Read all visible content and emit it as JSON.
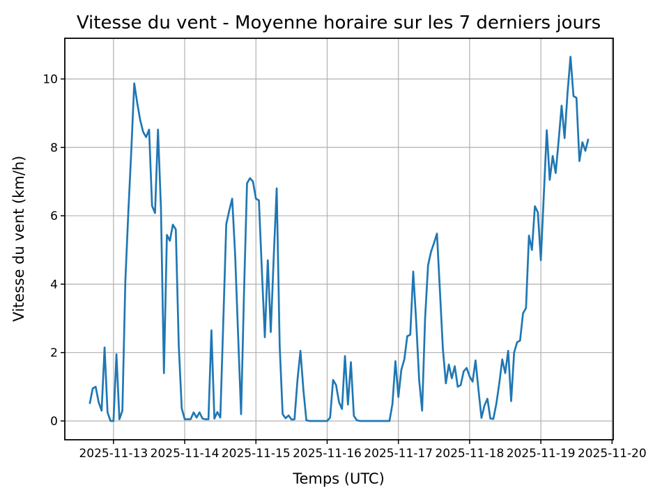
{
  "figure": {
    "background": "#ffffff"
  },
  "chart_data": {
    "type": "line",
    "title": "Vitesse du vent - Moyenne horaire sur les 7 derniers jours",
    "xlabel": "Temps (UTC)",
    "ylabel": "Vitesse du vent (km/h)",
    "line_color": "#1f77b4",
    "grid_color": "#b0b0b0",
    "spine_color": "#000000",
    "grid": true,
    "legend": false,
    "x_tick_hours": [
      0,
      24,
      48,
      72,
      96,
      120,
      144,
      168
    ],
    "x_tick_labels": [
      "2025-11-13",
      "2025-11-14",
      "2025-11-15",
      "2025-11-16",
      "2025-11-17",
      "2025-11-18",
      "2025-11-19",
      "2025-11-20"
    ],
    "y_ticks": [
      0,
      2,
      4,
      6,
      8,
      10
    ],
    "ylim": [
      -0.55,
      11.19
    ],
    "xlim_hours": [
      -16.4,
      168.4
    ],
    "series": [
      {
        "start_utc": "2025-11-12 16:00",
        "step_hours": 1,
        "start_hour_offset": -8,
        "values": [
          0.5,
          0.95,
          1.0,
          0.55,
          0.3,
          2.15,
          0.25,
          0.0,
          0.0,
          1.95,
          0.05,
          0.3,
          4.1,
          6.1,
          7.9,
          9.87,
          9.3,
          8.8,
          8.45,
          8.3,
          8.52,
          6.29,
          6.08,
          8.52,
          6.2,
          1.4,
          5.44,
          5.27,
          5.74,
          5.6,
          2.2,
          0.37,
          0.05,
          0.05,
          0.05,
          0.25,
          0.1,
          0.25,
          0.07,
          0.05,
          0.05,
          2.65,
          0.07,
          0.26,
          0.1,
          2.9,
          5.75,
          6.15,
          6.5,
          4.85,
          2.5,
          0.2,
          3.8,
          6.95,
          7.1,
          7.0,
          6.5,
          6.45,
          4.4,
          2.45,
          4.7,
          2.6,
          4.8,
          6.8,
          2.2,
          0.2,
          0.08,
          0.16,
          0.04,
          0.05,
          1.2,
          2.05,
          0.9,
          0.02,
          0.0,
          0.0,
          0.0,
          0.0,
          0.0,
          0.0,
          0.0,
          0.1,
          1.2,
          1.05,
          0.55,
          0.35,
          1.9,
          0.48,
          1.72,
          0.15,
          0.02,
          0.0,
          0.0,
          0.0,
          0.0,
          0.0,
          0.0,
          0.0,
          0.0,
          0.0,
          0.0,
          0.0,
          0.5,
          1.75,
          0.7,
          1.5,
          1.8,
          2.48,
          2.52,
          4.37,
          2.9,
          1.2,
          0.3,
          3.0,
          4.55,
          4.95,
          5.2,
          5.48,
          3.8,
          2.1,
          1.1,
          1.65,
          1.25,
          1.6,
          1.0,
          1.05,
          1.45,
          1.55,
          1.3,
          1.15,
          1.77,
          0.9,
          0.09,
          0.45,
          0.65,
          0.07,
          0.06,
          0.5,
          1.1,
          1.8,
          1.4,
          2.05,
          0.58,
          2.0,
          2.3,
          2.35,
          3.15,
          3.3,
          5.42,
          5.0,
          6.28,
          6.1,
          4.7,
          6.6,
          8.5,
          7.05,
          7.75,
          7.25,
          8.2,
          9.22,
          8.27,
          9.6,
          10.65,
          9.5,
          9.45,
          7.6,
          8.15,
          7.9,
          8.25
        ]
      }
    ]
  },
  "layout_labels": {
    "canvas": "matplotlib-style line chart"
  }
}
